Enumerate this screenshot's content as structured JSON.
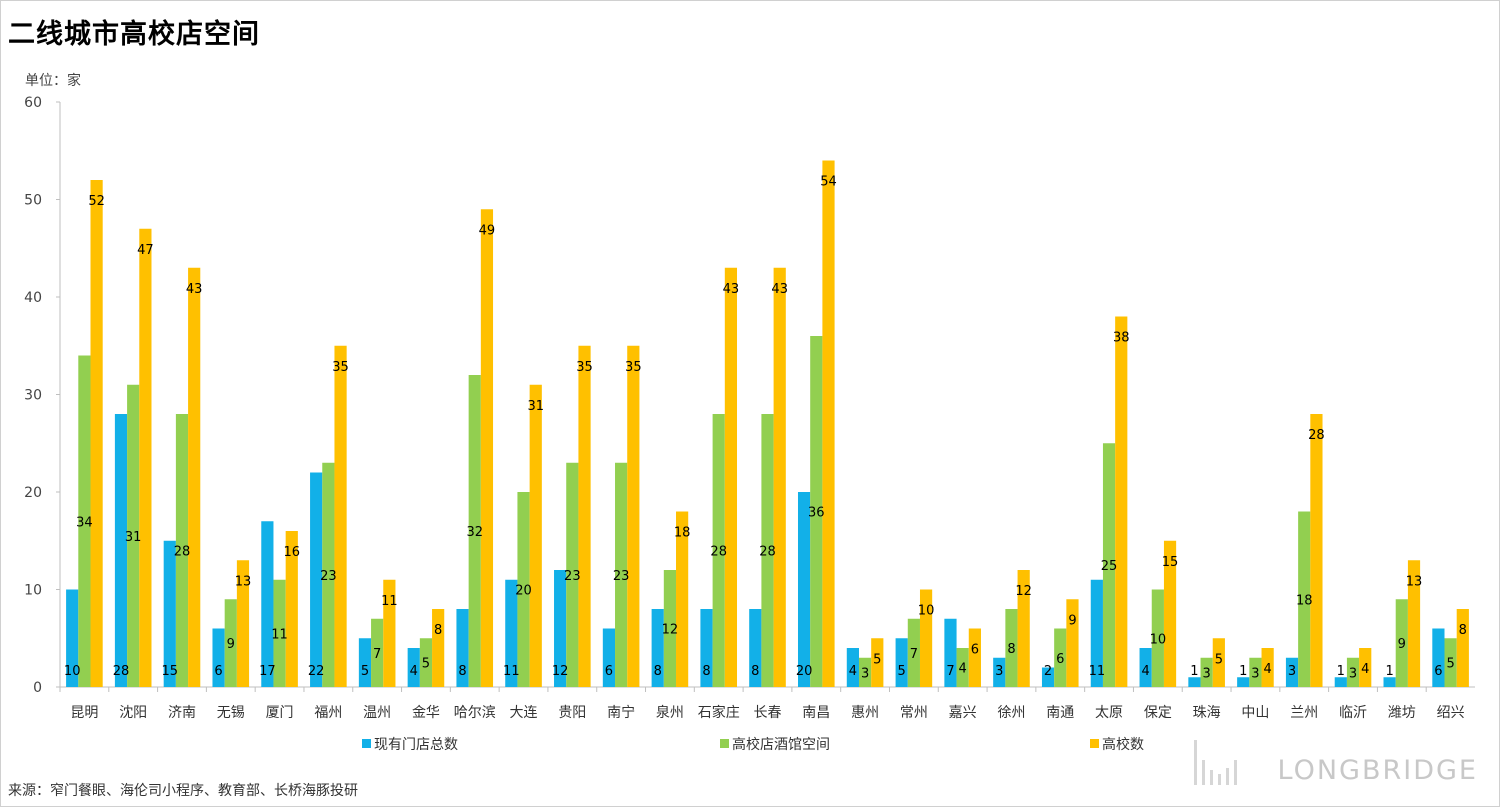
{
  "title": "二线城市高校店空间",
  "unit_label": "单位：家",
  "source": "来源：窄门餐眼、海伦司小程序、教育部、长桥海豚投研",
  "watermark_text": "LONGBRIDGE",
  "colors": {
    "series1": "#12b0e8",
    "series2": "#92cf50",
    "series3": "#ffc000"
  },
  "chart_data": {
    "type": "bar",
    "categories": [
      "昆明",
      "沈阳",
      "济南",
      "无锡",
      "厦门",
      "福州",
      "温州",
      "金华",
      "哈尔滨",
      "大连",
      "贵阳",
      "南宁",
      "泉州",
      "石家庄",
      "长春",
      "南昌",
      "惠州",
      "常州",
      "嘉兴",
      "徐州",
      "南通",
      "太原",
      "保定",
      "珠海",
      "中山",
      "兰州",
      "临沂",
      "潍坊",
      "绍兴"
    ],
    "ylim": [
      0,
      60
    ],
    "yticks": [
      0,
      10,
      20,
      30,
      40,
      50,
      60
    ],
    "legend_position": "bottom",
    "series": [
      {
        "name": "现有门店总数",
        "values": [
          10,
          28,
          15,
          6,
          17,
          22,
          5,
          4,
          8,
          11,
          12,
          6,
          8,
          8,
          8,
          20,
          4,
          5,
          7,
          3,
          2,
          11,
          4,
          1,
          1,
          3,
          1,
          1,
          6
        ]
      },
      {
        "name": "高校店酒馆空间",
        "values": [
          34,
          31,
          28,
          9,
          11,
          23,
          7,
          5,
          32,
          20,
          23,
          23,
          12,
          28,
          28,
          36,
          3,
          7,
          4,
          8,
          6,
          25,
          10,
          3,
          3,
          18,
          3,
          9,
          5
        ]
      },
      {
        "name": "高校数",
        "values": [
          52,
          47,
          43,
          13,
          16,
          35,
          11,
          8,
          49,
          31,
          35,
          35,
          18,
          43,
          43,
          54,
          5,
          10,
          6,
          12,
          9,
          38,
          15,
          5,
          4,
          28,
          4,
          13,
          8
        ]
      }
    ]
  }
}
